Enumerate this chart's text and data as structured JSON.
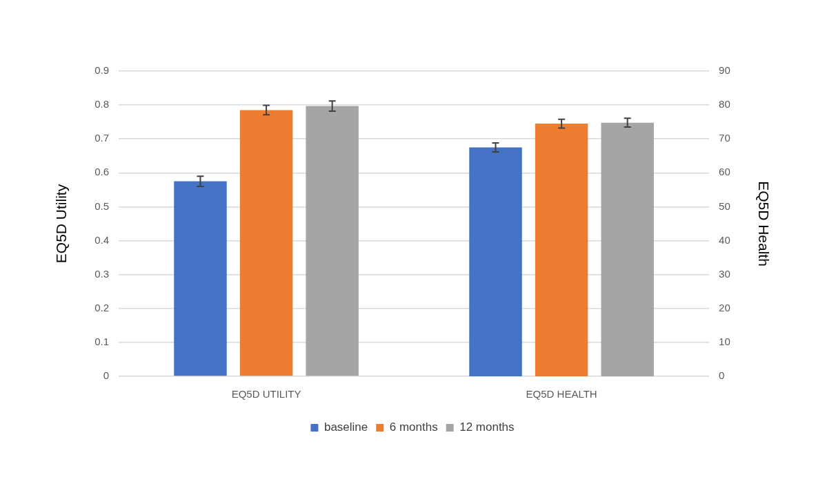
{
  "chart_data": {
    "type": "bar",
    "categories": [
      "EQ5D UTILITY",
      "EQ5D HEALTH"
    ],
    "ylabel": "EQ5D Utility",
    "y2label": "EQ5D Health",
    "series": [
      {
        "name": "baseline",
        "color": "#4472c4",
        "values": [
          0.575,
          null
        ],
        "errors": [
          0.015,
          null
        ]
      },
      {
        "name": "6 months",
        "color": "#ed7d31",
        "values": [
          0.785,
          null
        ],
        "errors": [
          0.014,
          null
        ]
      },
      {
        "name": "12 months",
        "color": "#a5a5a5",
        "values": [
          0.797,
          null
        ],
        "errors": [
          0.015,
          null
        ]
      },
      {
        "color": "#4472c4",
        "axis": "y2",
        "values": [
          null,
          67.5
        ],
        "errors": [
          null,
          1.3
        ]
      },
      {
        "color": "#ed7d31",
        "axis": "y2",
        "values": [
          null,
          74.5
        ],
        "errors": [
          null,
          1.3
        ]
      },
      {
        "color": "#a5a5a5",
        "axis": "y2",
        "values": [
          null,
          74.8
        ],
        "errors": [
          null,
          1.3
        ]
      }
    ],
    "ylim": [
      0,
      0.9
    ],
    "yticks": [
      0,
      0.1,
      0.2,
      0.3,
      0.4,
      0.5,
      0.6,
      0.7,
      0.8,
      0.9
    ],
    "y2lim": [
      0,
      90
    ],
    "y2ticks": [
      0,
      10,
      20,
      30,
      40,
      50,
      60,
      70,
      80,
      90
    ],
    "grid": "y",
    "legend": "bottom"
  }
}
